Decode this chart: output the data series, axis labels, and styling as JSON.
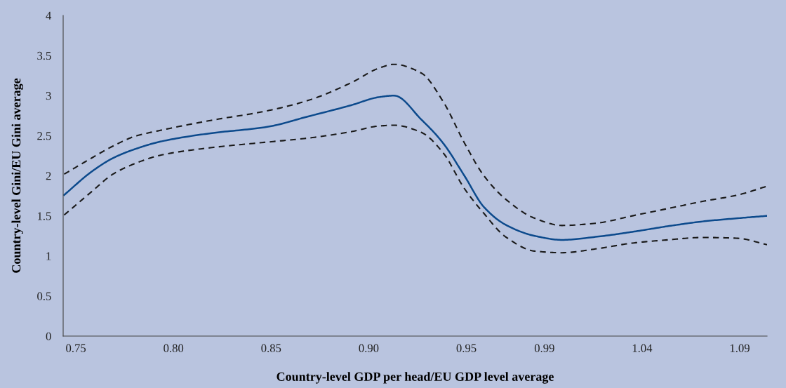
{
  "chart_data": {
    "type": "line",
    "xlabel": "Country-level GDP per head/EU GDP level average",
    "ylabel": "Country-level Gini/EU Gini average",
    "x": [
      0.744,
      0.758,
      0.769,
      0.78,
      0.794,
      0.819,
      0.848,
      0.869,
      0.891,
      0.905,
      0.913,
      0.927,
      0.938,
      0.949,
      0.959,
      0.97,
      0.985,
      0.999,
      1.017,
      1.035,
      1.053,
      1.071,
      1.089,
      1.104
    ],
    "series": [
      {
        "color": "#0c4a8c",
        "line_style": "solid",
        "values": [
          1.76,
          2.05,
          2.22,
          2.33,
          2.43,
          2.53,
          2.61,
          2.74,
          2.88,
          2.98,
          3.0,
          2.7,
          2.41,
          2.0,
          1.61,
          1.39,
          1.25,
          1.2,
          1.24,
          1.3,
          1.37,
          1.43,
          1.47,
          1.5
        ]
      },
      {
        "color": "#1a1a1a",
        "line_style": "dashed",
        "values": [
          2.02,
          2.22,
          2.37,
          2.49,
          2.57,
          2.69,
          2.81,
          2.94,
          3.16,
          3.34,
          3.39,
          3.28,
          2.93,
          2.41,
          2.0,
          1.71,
          1.47,
          1.38,
          1.41,
          1.5,
          1.59,
          1.68,
          1.76,
          1.87
        ]
      },
      {
        "color": "#1a1a1a",
        "line_style": "dashed",
        "values": [
          1.51,
          1.8,
          2.02,
          2.15,
          2.26,
          2.35,
          2.42,
          2.47,
          2.55,
          2.62,
          2.63,
          2.54,
          2.29,
          1.84,
          1.53,
          1.24,
          1.06,
          1.04,
          1.09,
          1.16,
          1.2,
          1.23,
          1.22,
          1.14
        ]
      }
    ],
    "xlim": [
      0.7435,
      1.104
    ],
    "xticks": [
      0.75,
      {
        "value": 0.8,
        "label": "0.80"
      },
      0.85,
      {
        "value": 0.9,
        "label": "0.90"
      },
      0.95,
      0.99,
      1.04,
      1.09
    ],
    "ylim": [
      0,
      4
    ],
    "yticks": [
      0,
      0.5,
      1,
      1.5,
      2,
      2.5,
      3,
      3.5,
      4
    ],
    "grid": false,
    "legend": false
  }
}
